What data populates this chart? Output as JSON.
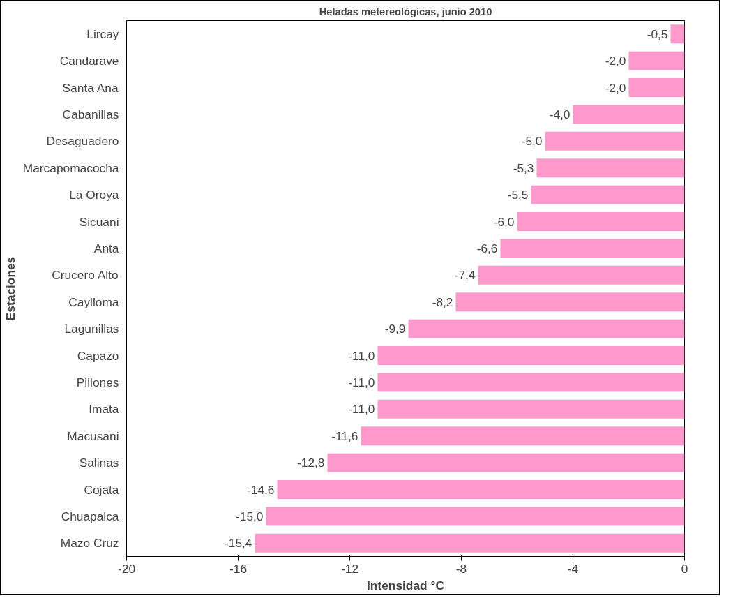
{
  "chart_data": {
    "type": "bar",
    "orientation": "horizontal",
    "title": "Heladas metereológicas, junio 2010",
    "xlabel": "Intensidad °C",
    "ylabel": "Estaciones",
    "categories": [
      "Lircay",
      "Candarave",
      "Santa Ana",
      "Cabanillas",
      "Desaguadero",
      "Marcapomacocha",
      "La Oroya",
      "Sicuani",
      "Anta",
      "Crucero Alto",
      "Caylloma",
      "Lagunillas",
      "Capazo",
      "Pillones",
      "Imata",
      "Macusani",
      "Salinas",
      "Cojata",
      "Chuapalca",
      "Mazo Cruz"
    ],
    "values": [
      -0.5,
      -2.0,
      -2.0,
      -4.0,
      -5.0,
      -5.3,
      -5.5,
      -6.0,
      -6.6,
      -7.4,
      -8.2,
      -9.9,
      -11.0,
      -11.0,
      -11.0,
      -11.6,
      -12.8,
      -14.6,
      -15.0,
      -15.4
    ],
    "value_labels": [
      "-0,5",
      "-2,0",
      "-2,0",
      "-4,0",
      "-5,0",
      "-5,3",
      "-5,5",
      "-6,0",
      "-6,6",
      "-7,4",
      "-8,2",
      "-9,9",
      "-11,0",
      "-11,0",
      "-11,0",
      "-11,6",
      "-12,8",
      "-14,6",
      "-15,0",
      "-15,4"
    ],
    "color": "#ff99cc",
    "xlim": [
      -20,
      0
    ],
    "xticks": [
      -20,
      -16,
      -12,
      -8,
      -4,
      0
    ],
    "grid": false
  }
}
